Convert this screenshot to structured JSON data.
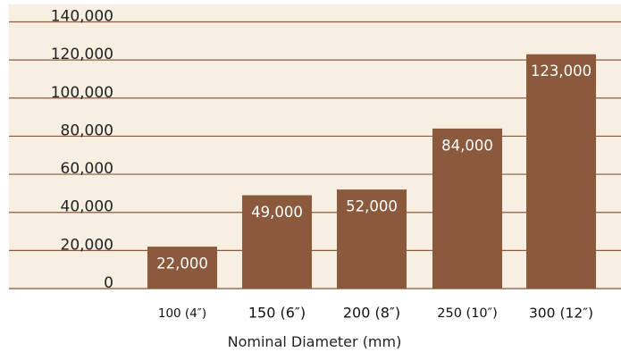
{
  "chart_data": {
    "type": "bar",
    "categories": [
      "100 (4″)",
      "150 (6″)",
      "200 (8″)",
      "250 (10″)",
      "300 (12″)"
    ],
    "values": [
      22000,
      49000,
      52000,
      84000,
      123000
    ],
    "data_labels": [
      "22,000",
      "49,000",
      "52,000",
      "84,000",
      "123,000"
    ],
    "y_ticks": [
      0,
      20000,
      40000,
      60000,
      80000,
      100000,
      120000,
      140000
    ],
    "y_tick_labels": [
      "0",
      "20,000",
      "40,000",
      "60,000",
      "80,000",
      "100,000",
      "120,000",
      "140,000"
    ],
    "title": "",
    "xlabel": "Nominal Diameter (mm)",
    "ylabel": "",
    "ylim": [
      0,
      140000
    ],
    "grid": true,
    "legend": "none",
    "colors": {
      "background": "#f8efe3",
      "bar": "#8b5a3c",
      "gridline": "#8b5a3c",
      "data_label": "#ffffff"
    }
  }
}
